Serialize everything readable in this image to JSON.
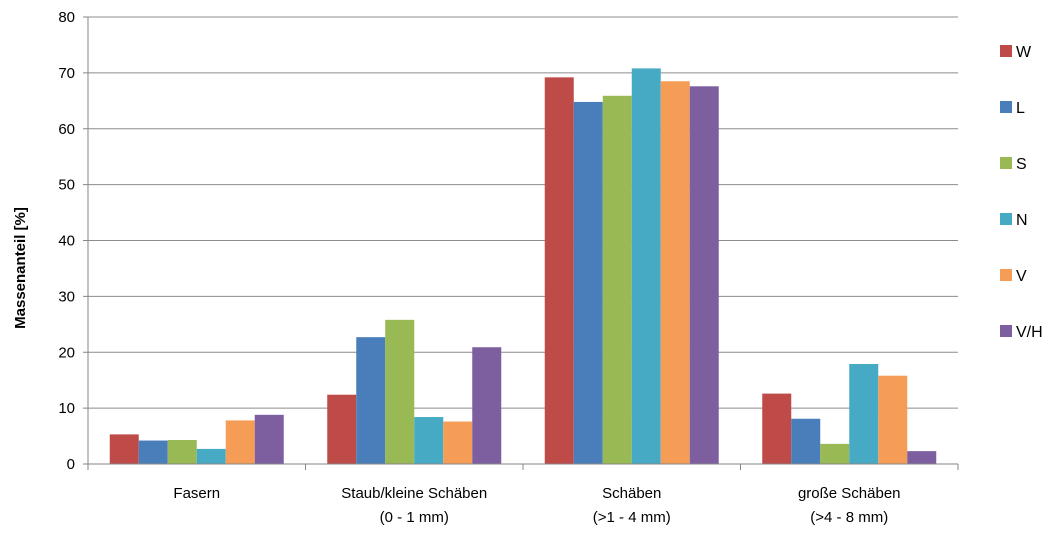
{
  "chart_data": {
    "type": "bar",
    "title": "",
    "ylabel": "Massenanteil [%]",
    "xlabel": "",
    "ylim": [
      0,
      80
    ],
    "y_ticks": [
      0,
      10,
      20,
      30,
      40,
      50,
      60,
      70,
      80
    ],
    "grid": true,
    "legend_position": "right",
    "categories": [
      [
        "Fasern"
      ],
      [
        "Staub/kleine Schäben",
        "(0 - 1 mm)"
      ],
      [
        "Schäben",
        "(>1 - 4 mm)"
      ],
      [
        "große Schäben",
        "(>4 - 8 mm)"
      ]
    ],
    "series": [
      {
        "name": "W",
        "color": "#BE4B48",
        "values": [
          5.3,
          12.4,
          69.2,
          12.6
        ]
      },
      {
        "name": "L",
        "color": "#4A7EBB",
        "values": [
          4.2,
          22.7,
          64.8,
          8.1
        ]
      },
      {
        "name": "S",
        "color": "#98B954",
        "values": [
          4.3,
          25.8,
          65.9,
          3.6
        ]
      },
      {
        "name": "N",
        "color": "#46AAC5",
        "values": [
          2.7,
          8.4,
          70.8,
          17.9
        ]
      },
      {
        "name": "V",
        "color": "#F59D56",
        "values": [
          7.8,
          7.6,
          68.5,
          15.8
        ]
      },
      {
        "name": "V/H",
        "color": "#7D5FA0",
        "values": [
          8.8,
          20.9,
          67.6,
          2.3
        ]
      }
    ]
  }
}
